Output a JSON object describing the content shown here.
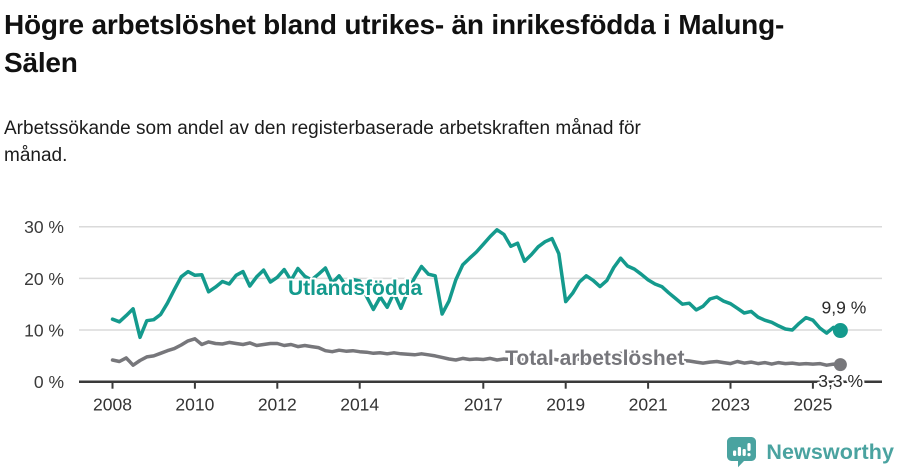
{
  "header": {
    "title": "Högre arbetslöshet bland utrikes- än inrikesfödda i Malung-Sälen",
    "subtitle": "Arbetssökande som andel av den registerbaserade arbetskraften månad för månad."
  },
  "footer": {
    "brand": "Newsworthy",
    "logo_icon": "bar-chart-speech-bubble",
    "brand_color": "#4aa3a0"
  },
  "colors": {
    "series_utlandsfodda": "#149a8d",
    "series_total": "#77777b",
    "axis": "#3a3a3a",
    "grid": "#dadada",
    "text": "#111111"
  },
  "chart_data": {
    "type": "line",
    "title": "Högre arbetslöshet bland utrikes- än inrikesfödda i Malung-Sälen",
    "subtitle": "Arbetssökande som andel av den registerbaserade arbetskraften månad för månad.",
    "unit": "%",
    "x_start": 2008.0,
    "x_step": 0.16667,
    "xlim": [
      2008.0,
      2025.667
    ],
    "ylim": [
      0,
      30
    ],
    "grid": "horizontal",
    "legend_position": "inline-labels",
    "y_ticks": [
      {
        "value": 0,
        "label": "0 %"
      },
      {
        "value": 10,
        "label": "10 %"
      },
      {
        "value": 20,
        "label": "20 %"
      },
      {
        "value": 30,
        "label": "30 %"
      }
    ],
    "x_ticks": [
      {
        "value": 2008,
        "label": "2008"
      },
      {
        "value": 2010,
        "label": "2010"
      },
      {
        "value": 2012,
        "label": "2012"
      },
      {
        "value": 2014,
        "label": "2014"
      },
      {
        "value": 2017,
        "label": "2017"
      },
      {
        "value": 2019,
        "label": "2019"
      },
      {
        "value": 2021,
        "label": "2021"
      },
      {
        "value": 2023,
        "label": "2023"
      },
      {
        "value": 2025,
        "label": "2025"
      }
    ],
    "series": [
      {
        "name": "Utlandsfödda",
        "color": "#149a8d",
        "end_value_label": "9,9 %",
        "end_dot_radius": 7.5,
        "values": [
          12.1,
          11.6,
          12.8,
          14.1,
          8.6,
          11.8,
          12.0,
          13.0,
          15.2,
          17.8,
          20.3,
          21.3,
          20.6,
          20.7,
          17.4,
          18.3,
          19.4,
          18.9,
          20.6,
          21.3,
          18.5,
          20.3,
          21.6,
          19.3,
          20.2,
          21.7,
          19.6,
          21.9,
          20.4,
          19.7,
          20.8,
          22.0,
          19.1,
          20.5,
          18.6,
          19.8,
          19.5,
          16.5,
          14.0,
          16.4,
          14.4,
          17.2,
          14.2,
          17.5,
          20.1,
          22.3,
          20.8,
          20.5,
          13.1,
          15.6,
          19.7,
          22.6,
          23.9,
          25.1,
          26.6,
          28.1,
          29.4,
          28.5,
          26.2,
          26.8,
          23.3,
          24.6,
          26.1,
          27.1,
          27.7,
          24.8,
          15.5,
          17.1,
          19.3,
          20.5,
          19.6,
          18.4,
          19.6,
          22.1,
          23.9,
          22.4,
          21.8,
          20.8,
          19.7,
          18.9,
          18.4,
          17.2,
          16.1,
          15.0,
          15.2,
          13.9,
          14.6,
          16.0,
          16.4,
          15.6,
          15.1,
          14.2,
          13.3,
          13.6,
          12.5,
          11.9,
          11.5,
          10.8,
          10.2,
          10.0,
          11.3,
          12.4,
          11.9,
          10.4,
          9.4,
          10.5,
          9.9
        ]
      },
      {
        "name": "Total arbetslöshet",
        "color": "#77777b",
        "end_value_label": "3,3 %",
        "end_dot_radius": 6.5,
        "values": [
          4.2,
          3.9,
          4.6,
          3.2,
          4.1,
          4.8,
          5.0,
          5.5,
          6.0,
          6.4,
          7.1,
          7.9,
          8.3,
          7.2,
          7.7,
          7.4,
          7.3,
          7.6,
          7.4,
          7.2,
          7.5,
          7.0,
          7.2,
          7.4,
          7.4,
          7.0,
          7.2,
          6.8,
          7.0,
          6.8,
          6.6,
          6.0,
          5.8,
          6.1,
          5.9,
          6.0,
          5.8,
          5.7,
          5.5,
          5.6,
          5.4,
          5.6,
          5.4,
          5.3,
          5.2,
          5.4,
          5.2,
          5.0,
          4.7,
          4.4,
          4.2,
          4.5,
          4.3,
          4.4,
          4.3,
          4.5,
          4.2,
          4.4,
          4.3,
          4.4,
          4.2,
          4.4,
          4.3,
          4.5,
          4.4,
          4.2,
          4.0,
          4.2,
          4.4,
          4.3,
          4.5,
          4.4,
          4.6,
          5.2,
          5.5,
          5.3,
          5.1,
          5.0,
          4.8,
          4.6,
          4.4,
          4.3,
          4.2,
          4.1,
          4.0,
          3.8,
          3.6,
          3.8,
          3.9,
          3.7,
          3.5,
          3.9,
          3.6,
          3.8,
          3.5,
          3.7,
          3.4,
          3.7,
          3.5,
          3.6,
          3.4,
          3.5,
          3.4,
          3.5,
          3.2,
          3.4,
          3.3
        ]
      }
    ],
    "annotations": [
      {
        "id": "series-label-utlandsfodda",
        "text": "Utlandsfödda",
        "x": 2012.26,
        "y_baseline_pct": 16.8,
        "cls": "series-label-0",
        "anchor": "start"
      },
      {
        "id": "series-label-total",
        "text": "Total arbetslöshet",
        "x": 2017.53,
        "y_baseline_pct": 3.2,
        "cls": "series-label-1",
        "anchor": "start"
      },
      {
        "id": "end-value-utlandsfodda",
        "text": "9,9 %",
        "x": 2025.21,
        "y_baseline_pct": 13.2,
        "cls": "end-label",
        "anchor": "start"
      },
      {
        "id": "end-value-total",
        "text": "3,3 %",
        "x": 2025.13,
        "y_baseline_pct": -1.0,
        "cls": "end-label",
        "anchor": "start"
      }
    ]
  }
}
